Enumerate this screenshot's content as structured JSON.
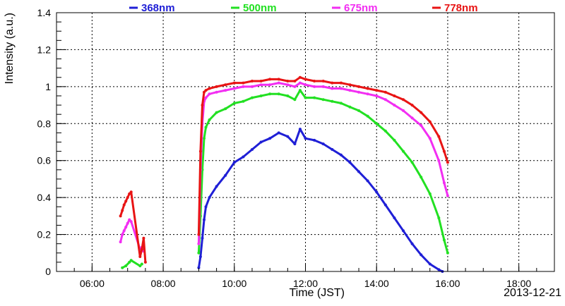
{
  "chart_data": {
    "type": "scatter",
    "title": "",
    "xlabel": "Time (JST)",
    "ylabel": "Intensity (a.u.)",
    "date_label": "2013-12-21",
    "x_unit": "hours (JST)",
    "xlim": [
      5,
      19
    ],
    "ylim": [
      0,
      1.4
    ],
    "x_ticks": [
      {
        "value": 6,
        "label": "06:00"
      },
      {
        "value": 8,
        "label": "08:00"
      },
      {
        "value": 10,
        "label": "10:00"
      },
      {
        "value": 12,
        "label": "12:00"
      },
      {
        "value": 14,
        "label": "14:00"
      },
      {
        "value": 16,
        "label": "16:00"
      },
      {
        "value": 18,
        "label": "18:00"
      }
    ],
    "y_ticks": [
      {
        "value": 0,
        "label": "0"
      },
      {
        "value": 0.2,
        "label": "0.2"
      },
      {
        "value": 0.4,
        "label": "0.4"
      },
      {
        "value": 0.6,
        "label": "0.6"
      },
      {
        "value": 0.8,
        "label": "0.8"
      },
      {
        "value": 1.0,
        "label": "1"
      },
      {
        "value": 1.2,
        "label": "1.2"
      },
      {
        "value": 1.4,
        "label": "1.4"
      }
    ],
    "grid": true,
    "legend_position": "top",
    "series": [
      {
        "name": "368nm",
        "color": "#1f1fd6",
        "points": [
          [
            9.0,
            0.02
          ],
          [
            9.05,
            0.08
          ],
          [
            9.1,
            0.18
          ],
          [
            9.15,
            0.28
          ],
          [
            9.2,
            0.35
          ],
          [
            9.3,
            0.4
          ],
          [
            9.5,
            0.46
          ],
          [
            9.75,
            0.52
          ],
          [
            10.0,
            0.59
          ],
          [
            10.25,
            0.62
          ],
          [
            10.5,
            0.66
          ],
          [
            10.75,
            0.7
          ],
          [
            11.0,
            0.72
          ],
          [
            11.25,
            0.75
          ],
          [
            11.5,
            0.73
          ],
          [
            11.7,
            0.69
          ],
          [
            11.85,
            0.77
          ],
          [
            12.0,
            0.72
          ],
          [
            12.25,
            0.71
          ],
          [
            12.5,
            0.69
          ],
          [
            12.75,
            0.66
          ],
          [
            13.0,
            0.63
          ],
          [
            13.25,
            0.59
          ],
          [
            13.5,
            0.54
          ],
          [
            13.75,
            0.49
          ],
          [
            14.0,
            0.43
          ],
          [
            14.25,
            0.36
          ],
          [
            14.5,
            0.29
          ],
          [
            14.75,
            0.22
          ],
          [
            15.0,
            0.15
          ],
          [
            15.25,
            0.09
          ],
          [
            15.5,
            0.04
          ],
          [
            15.75,
            0.01
          ],
          [
            15.85,
            0.0
          ]
        ]
      },
      {
        "name": "500nm",
        "color": "#22e022",
        "points": [
          [
            6.85,
            0.02
          ],
          [
            6.95,
            0.03
          ],
          [
            7.05,
            0.05
          ],
          [
            7.1,
            0.06
          ],
          [
            7.35,
            0.03
          ],
          [
            7.4,
            0.04
          ],
          [
            9.0,
            0.1
          ],
          [
            9.05,
            0.3
          ],
          [
            9.1,
            0.55
          ],
          [
            9.15,
            0.72
          ],
          [
            9.2,
            0.78
          ],
          [
            9.3,
            0.82
          ],
          [
            9.5,
            0.86
          ],
          [
            9.75,
            0.88
          ],
          [
            10.0,
            0.91
          ],
          [
            10.25,
            0.92
          ],
          [
            10.5,
            0.94
          ],
          [
            10.75,
            0.95
          ],
          [
            11.0,
            0.96
          ],
          [
            11.25,
            0.96
          ],
          [
            11.5,
            0.95
          ],
          [
            11.7,
            0.93
          ],
          [
            11.85,
            0.98
          ],
          [
            12.0,
            0.94
          ],
          [
            12.25,
            0.94
          ],
          [
            12.5,
            0.93
          ],
          [
            12.75,
            0.92
          ],
          [
            13.0,
            0.91
          ],
          [
            13.25,
            0.89
          ],
          [
            13.5,
            0.87
          ],
          [
            13.75,
            0.84
          ],
          [
            14.0,
            0.8
          ],
          [
            14.25,
            0.76
          ],
          [
            14.5,
            0.71
          ],
          [
            14.75,
            0.65
          ],
          [
            15.0,
            0.59
          ],
          [
            15.25,
            0.51
          ],
          [
            15.5,
            0.42
          ],
          [
            15.75,
            0.29
          ],
          [
            15.9,
            0.17
          ],
          [
            16.0,
            0.1
          ]
        ]
      },
      {
        "name": "675nm",
        "color": "#f22ef2",
        "points": [
          [
            6.8,
            0.16
          ],
          [
            6.85,
            0.2
          ],
          [
            6.9,
            0.22
          ],
          [
            6.95,
            0.24
          ],
          [
            7.0,
            0.26
          ],
          [
            7.05,
            0.28
          ],
          [
            7.1,
            0.27
          ],
          [
            7.35,
            0.12
          ],
          [
            7.4,
            0.13
          ],
          [
            7.45,
            0.11
          ],
          [
            9.0,
            0.15
          ],
          [
            9.05,
            0.55
          ],
          [
            9.1,
            0.8
          ],
          [
            9.15,
            0.92
          ],
          [
            9.2,
            0.94
          ],
          [
            9.3,
            0.96
          ],
          [
            9.5,
            0.97
          ],
          [
            9.75,
            0.98
          ],
          [
            10.0,
            0.99
          ],
          [
            10.25,
            1.0
          ],
          [
            10.5,
            1.0
          ],
          [
            10.75,
            1.01
          ],
          [
            11.0,
            1.01
          ],
          [
            11.25,
            1.02
          ],
          [
            11.5,
            1.01
          ],
          [
            11.7,
            1.0
          ],
          [
            11.85,
            1.02
          ],
          [
            12.0,
            1.01
          ],
          [
            12.25,
            1.0
          ],
          [
            12.5,
            1.0
          ],
          [
            12.75,
            0.99
          ],
          [
            13.0,
            0.99
          ],
          [
            13.25,
            0.98
          ],
          [
            13.5,
            0.97
          ],
          [
            13.75,
            0.96
          ],
          [
            14.0,
            0.95
          ],
          [
            14.25,
            0.93
          ],
          [
            14.5,
            0.9
          ],
          [
            14.75,
            0.87
          ],
          [
            15.0,
            0.83
          ],
          [
            15.25,
            0.79
          ],
          [
            15.5,
            0.72
          ],
          [
            15.75,
            0.6
          ],
          [
            15.9,
            0.48
          ],
          [
            16.0,
            0.41
          ]
        ]
      },
      {
        "name": "778nm",
        "color": "#e81414",
        "points": [
          [
            6.8,
            0.3
          ],
          [
            6.85,
            0.33
          ],
          [
            6.9,
            0.36
          ],
          [
            6.95,
            0.38
          ],
          [
            7.0,
            0.4
          ],
          [
            7.05,
            0.42
          ],
          [
            7.1,
            0.43
          ],
          [
            7.35,
            0.08
          ],
          [
            7.4,
            0.12
          ],
          [
            7.45,
            0.18
          ],
          [
            7.5,
            0.05
          ],
          [
            9.0,
            0.2
          ],
          [
            9.05,
            0.65
          ],
          [
            9.1,
            0.9
          ],
          [
            9.15,
            0.97
          ],
          [
            9.2,
            0.98
          ],
          [
            9.3,
            0.99
          ],
          [
            9.5,
            1.0
          ],
          [
            9.75,
            1.01
          ],
          [
            10.0,
            1.02
          ],
          [
            10.25,
            1.02
          ],
          [
            10.5,
            1.03
          ],
          [
            10.75,
            1.03
          ],
          [
            11.0,
            1.04
          ],
          [
            11.25,
            1.04
          ],
          [
            11.5,
            1.03
          ],
          [
            11.7,
            1.03
          ],
          [
            11.85,
            1.05
          ],
          [
            12.0,
            1.04
          ],
          [
            12.25,
            1.03
          ],
          [
            12.5,
            1.03
          ],
          [
            12.75,
            1.02
          ],
          [
            13.0,
            1.02
          ],
          [
            13.25,
            1.01
          ],
          [
            13.5,
            1.0
          ],
          [
            13.75,
            0.99
          ],
          [
            14.0,
            0.98
          ],
          [
            14.25,
            0.97
          ],
          [
            14.5,
            0.95
          ],
          [
            14.75,
            0.93
          ],
          [
            15.0,
            0.9
          ],
          [
            15.25,
            0.86
          ],
          [
            15.5,
            0.81
          ],
          [
            15.75,
            0.73
          ],
          [
            15.9,
            0.65
          ],
          [
            16.0,
            0.59
          ]
        ]
      }
    ]
  }
}
